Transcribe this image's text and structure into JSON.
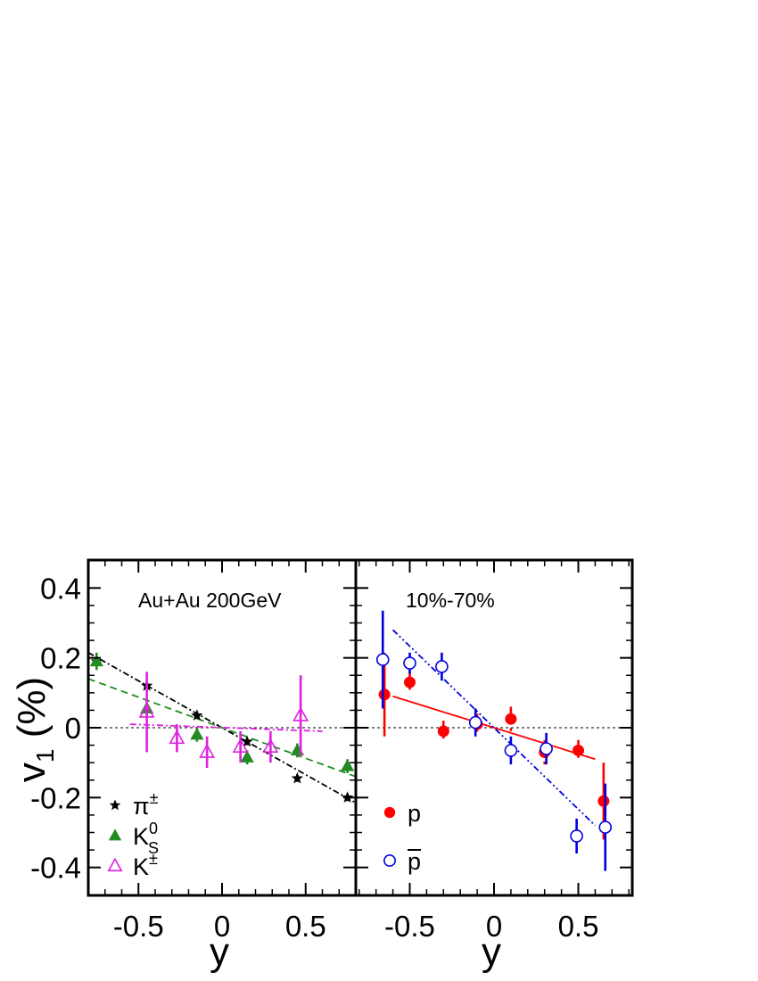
{
  "chart_data": [
    {
      "type": "scatter",
      "panel": "left",
      "annotation": "Au+Au 200GeV",
      "ylabel": "v1 (%)",
      "ylabel_base": "v",
      "ylabel_sub": "1",
      "ylabel_rest": " (%)",
      "xlabel": "y",
      "xlim": [
        -0.8,
        0.8
      ],
      "ylim": [
        -0.48,
        0.48
      ],
      "xticks": [
        -0.5,
        0,
        0.5
      ],
      "xtick_labels": [
        "-0.5",
        "0",
        "0.5"
      ],
      "yticks": [
        -0.4,
        -0.2,
        0,
        0.2,
        0.4
      ],
      "ytick_labels": [
        "-0.4",
        "-0.2",
        "0",
        "0.2",
        "0.4"
      ],
      "legend_position": "bottom-left",
      "series": [
        {
          "key": "pion",
          "name": "π±",
          "legend_base": "π",
          "legend_sup": "±",
          "marker": "star",
          "color": "#000000",
          "x": [
            -0.75,
            -0.45,
            -0.15,
            0.15,
            0.45,
            0.75
          ],
          "y": [
            0.19,
            0.12,
            0.035,
            -0.04,
            -0.145,
            -0.2
          ],
          "err": [
            0.01,
            0.01,
            0.01,
            0.01,
            0.01,
            0.01
          ],
          "fit": {
            "x": [
              -0.8,
              0.8
            ],
            "y": [
              0.215,
              -0.215
            ],
            "style": "dashdot"
          }
        },
        {
          "key": "k0s",
          "name": "K0S",
          "legend_base": "K",
          "legend_sup": "0",
          "legend_sub": "S",
          "marker": "filled-triangle",
          "color": "#228b22",
          "x": [
            -0.75,
            -0.45,
            -0.15,
            0.15,
            0.45,
            0.75
          ],
          "y": [
            0.19,
            0.055,
            -0.02,
            -0.085,
            -0.065,
            -0.11
          ],
          "err": [
            0.025,
            0.02,
            0.02,
            0.02,
            0.02,
            0.02
          ],
          "fit": {
            "x": [
              -0.8,
              0.8
            ],
            "y": [
              0.14,
              -0.14
            ],
            "style": "dashed"
          }
        },
        {
          "key": "kch",
          "name": "K±",
          "legend_base": "K",
          "legend_sup": "±",
          "marker": "open-triangle",
          "color": "#e020e0",
          "x": [
            -0.45,
            -0.27,
            -0.09,
            0.11,
            0.29,
            0.47
          ],
          "y": [
            0.045,
            -0.03,
            -0.07,
            -0.055,
            -0.055,
            0.035
          ],
          "err": [
            0.115,
            0.04,
            0.045,
            0.045,
            0.045,
            0.115
          ],
          "fit": {
            "x": [
              -0.55,
              0.6
            ],
            "y": [
              0.01,
              -0.01
            ],
            "style": "dashdot"
          }
        }
      ]
    },
    {
      "type": "scatter",
      "panel": "right",
      "annotation": "10%-70%",
      "xlabel": "y",
      "xlim": [
        -0.82,
        0.82
      ],
      "ylim": [
        -0.48,
        0.48
      ],
      "xticks": [
        -0.5,
        0,
        0.5
      ],
      "xtick_labels": [
        "-0.5",
        "0",
        "0.5"
      ],
      "legend_position": "bottom-left",
      "series": [
        {
          "key": "proton",
          "name": "p",
          "legend_base": "p",
          "marker": "filled-circle",
          "color": "#ff0000",
          "x": [
            -0.65,
            -0.5,
            -0.3,
            -0.1,
            0.1,
            0.3,
            0.5,
            0.65
          ],
          "y": [
            0.095,
            0.13,
            -0.01,
            0.01,
            0.025,
            -0.07,
            -0.065,
            -0.21
          ],
          "err": [
            0.12,
            0.03,
            0.03,
            0.03,
            0.035,
            0.035,
            0.03,
            0.11
          ],
          "fit": {
            "x": [
              -0.6,
              0.6
            ],
            "y": [
              0.09,
              -0.09
            ],
            "style": "solid"
          }
        },
        {
          "key": "antiproton",
          "name": "p̄",
          "legend_base": "p",
          "legend_bar": true,
          "marker": "open-circle",
          "color": "#0000e0",
          "x": [
            -0.66,
            -0.5,
            -0.31,
            -0.11,
            0.1,
            0.31,
            0.49,
            0.66
          ],
          "y": [
            0.195,
            0.185,
            0.175,
            0.015,
            -0.065,
            -0.06,
            -0.31,
            -0.285
          ],
          "err": [
            0.14,
            0.03,
            0.04,
            0.04,
            0.04,
            0.045,
            0.05,
            0.125
          ],
          "fit": {
            "x": [
              -0.6,
              0.6
            ],
            "y": [
              0.28,
              -0.28
            ],
            "style": "dashdotdot"
          }
        }
      ]
    }
  ]
}
